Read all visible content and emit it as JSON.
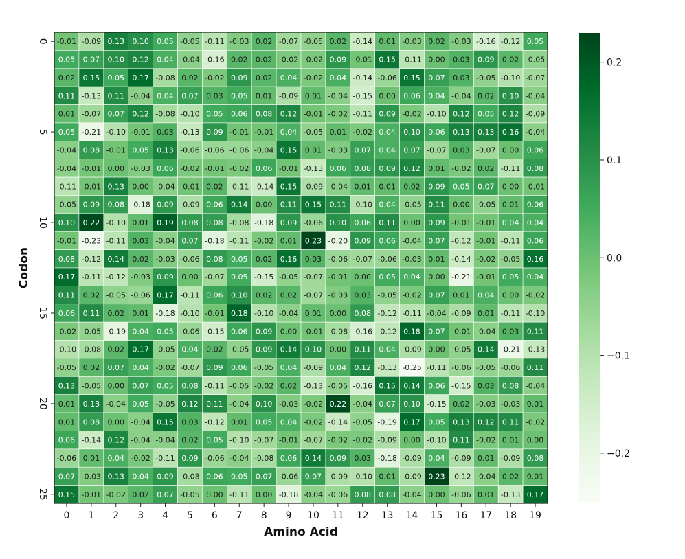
{
  "chart_data": {
    "type": "heatmap",
    "xlabel": "Amino Acid",
    "ylabel": "Codon",
    "x_categories": [
      0,
      1,
      2,
      3,
      4,
      5,
      6,
      7,
      8,
      9,
      10,
      11,
      12,
      13,
      14,
      15,
      16,
      17,
      18,
      19
    ],
    "y_categories": [
      0,
      1,
      2,
      3,
      4,
      5,
      6,
      7,
      8,
      9,
      10,
      11,
      12,
      13,
      14,
      15,
      16,
      17,
      18,
      19,
      20,
      21,
      22,
      23,
      24,
      25
    ],
    "y_tick_labels_shown": [
      0,
      5,
      10,
      15,
      20,
      25
    ],
    "colormap": "Greens",
    "vmin": -0.25,
    "vmax": 0.23,
    "colorbar_ticks": [
      -0.2,
      -0.1,
      0.0,
      0.1,
      0.2
    ],
    "colorbar_tick_labels": [
      "−0.2",
      "−0.1",
      "0.0",
      "0.1",
      "0.2"
    ],
    "values": [
      [
        -0.01,
        -0.09,
        0.13,
        0.1,
        0.05,
        -0.05,
        -0.11,
        -0.03,
        0.02,
        -0.07,
        -0.05,
        0.02,
        -0.14,
        0.01,
        -0.03,
        0.02,
        -0.03,
        -0.16,
        -0.12,
        0.05
      ],
      [
        0.05,
        0.07,
        0.1,
        0.12,
        0.04,
        -0.04,
        -0.16,
        0.02,
        0.02,
        -0.02,
        -0.02,
        0.09,
        -0.01,
        0.15,
        -0.11,
        -0.0,
        0.03,
        0.09,
        0.02,
        -0.05
      ],
      [
        0.02,
        0.15,
        0.05,
        0.17,
        -0.08,
        0.02,
        -0.02,
        0.09,
        0.02,
        0.04,
        -0.02,
        0.04,
        -0.14,
        -0.06,
        0.15,
        0.07,
        0.03,
        -0.05,
        -0.1,
        -0.07
      ],
      [
        0.11,
        -0.13,
        0.11,
        -0.04,
        0.04,
        0.07,
        0.03,
        0.05,
        0.01,
        -0.09,
        0.01,
        -0.04,
        -0.15,
        0.0,
        0.06,
        0.04,
        -0.04,
        0.02,
        0.1,
        -0.04
      ],
      [
        0.01,
        -0.07,
        0.07,
        0.12,
        -0.08,
        -0.1,
        0.05,
        0.06,
        0.08,
        0.12,
        -0.01,
        -0.02,
        -0.11,
        0.09,
        -0.02,
        -0.1,
        0.12,
        0.05,
        0.12,
        -0.09
      ],
      [
        0.05,
        -0.21,
        -0.1,
        -0.01,
        0.03,
        -0.13,
        0.09,
        -0.01,
        -0.01,
        0.04,
        -0.05,
        0.01,
        -0.02,
        0.04,
        0.1,
        0.06,
        0.13,
        0.13,
        0.16,
        -0.04
      ],
      [
        -0.04,
        0.08,
        -0.01,
        0.05,
        0.13,
        -0.06,
        -0.06,
        -0.06,
        -0.04,
        0.15,
        0.01,
        -0.03,
        0.07,
        0.04,
        0.07,
        -0.07,
        0.03,
        -0.07,
        0.0,
        0.06
      ],
      [
        -0.04,
        -0.01,
        -0.0,
        -0.03,
        0.06,
        -0.02,
        -0.01,
        -0.02,
        0.06,
        -0.01,
        -0.13,
        0.06,
        0.08,
        0.09,
        0.12,
        0.01,
        -0.02,
        0.02,
        -0.11,
        0.08
      ],
      [
        -0.11,
        -0.01,
        0.13,
        0.0,
        -0.04,
        -0.01,
        0.02,
        -0.11,
        -0.14,
        0.15,
        -0.09,
        -0.04,
        0.01,
        0.01,
        0.02,
        0.09,
        0.05,
        0.07,
        0.0,
        -0.01
      ],
      [
        -0.05,
        0.09,
        0.08,
        -0.18,
        0.09,
        -0.09,
        0.06,
        0.14,
        -0.0,
        0.11,
        0.15,
        0.11,
        -0.1,
        0.04,
        -0.05,
        0.11,
        0.0,
        -0.05,
        0.01,
        0.06
      ],
      [
        0.1,
        0.22,
        -0.1,
        0.01,
        0.19,
        0.08,
        0.08,
        -0.08,
        -0.18,
        0.09,
        -0.06,
        0.1,
        0.06,
        0.11,
        0.0,
        0.09,
        -0.01,
        -0.01,
        0.04,
        0.04
      ],
      [
        -0.01,
        -0.23,
        -0.11,
        0.03,
        -0.04,
        0.07,
        -0.18,
        -0.11,
        -0.02,
        0.01,
        0.23,
        -0.2,
        0.09,
        0.06,
        -0.04,
        0.07,
        -0.12,
        -0.01,
        -0.11,
        0.06
      ],
      [
        0.08,
        -0.12,
        0.14,
        0.02,
        -0.03,
        -0.06,
        0.08,
        0.05,
        0.02,
        0.16,
        0.03,
        -0.06,
        -0.07,
        -0.06,
        -0.03,
        0.01,
        -0.14,
        -0.02,
        -0.05,
        0.16
      ],
      [
        0.17,
        -0.11,
        -0.12,
        -0.03,
        0.09,
        0.0,
        -0.07,
        0.05,
        -0.15,
        -0.05,
        -0.07,
        -0.01,
        0.0,
        0.05,
        0.04,
        0.0,
        -0.21,
        -0.01,
        0.05,
        0.04
      ],
      [
        0.11,
        0.02,
        -0.05,
        -0.06,
        0.17,
        -0.11,
        0.06,
        0.1,
        0.02,
        0.02,
        -0.07,
        -0.03,
        0.03,
        -0.05,
        -0.02,
        0.07,
        0.01,
        0.04,
        0.0,
        -0.02
      ],
      [
        0.06,
        0.11,
        0.02,
        0.01,
        -0.18,
        -0.1,
        -0.01,
        0.18,
        -0.1,
        -0.04,
        0.01,
        0.0,
        0.08,
        -0.12,
        -0.11,
        -0.04,
        -0.09,
        0.01,
        -0.11,
        -0.1
      ],
      [
        -0.02,
        -0.05,
        -0.19,
        0.04,
        0.05,
        -0.06,
        -0.15,
        0.06,
        0.09,
        -0.0,
        -0.01,
        -0.08,
        -0.16,
        -0.12,
        0.18,
        0.07,
        -0.01,
        -0.04,
        0.03,
        0.11
      ],
      [
        -0.1,
        -0.08,
        0.02,
        0.17,
        -0.05,
        0.04,
        0.02,
        -0.05,
        0.09,
        0.14,
        0.1,
        -0.0,
        0.11,
        0.04,
        -0.09,
        -0.0,
        -0.05,
        0.14,
        -0.21,
        -0.13
      ],
      [
        -0.05,
        0.02,
        0.07,
        0.04,
        -0.02,
        -0.07,
        0.09,
        0.06,
        -0.05,
        0.04,
        -0.09,
        0.04,
        0.12,
        -0.13,
        -0.25,
        -0.11,
        -0.06,
        -0.05,
        -0.06,
        0.11
      ],
      [
        0.13,
        -0.05,
        0.0,
        0.07,
        0.05,
        0.08,
        -0.11,
        -0.05,
        -0.02,
        0.02,
        -0.13,
        -0.05,
        -0.16,
        0.15,
        0.14,
        0.06,
        -0.15,
        0.03,
        0.08,
        -0.04
      ],
      [
        0.01,
        0.13,
        -0.04,
        0.05,
        -0.05,
        0.12,
        0.11,
        -0.04,
        0.1,
        -0.03,
        -0.02,
        0.22,
        -0.04,
        0.07,
        0.1,
        -0.15,
        0.02,
        -0.03,
        -0.03,
        0.01
      ],
      [
        0.01,
        0.08,
        0.0,
        -0.04,
        0.15,
        0.03,
        -0.12,
        0.01,
        0.05,
        0.04,
        -0.02,
        -0.14,
        -0.05,
        -0.19,
        0.17,
        0.05,
        0.13,
        0.12,
        0.11,
        -0.02
      ],
      [
        0.06,
        -0.14,
        0.12,
        -0.04,
        -0.04,
        0.02,
        0.05,
        -0.1,
        -0.07,
        -0.01,
        -0.07,
        -0.02,
        -0.02,
        -0.09,
        0.0,
        -0.1,
        0.11,
        -0.02,
        0.01,
        -0.0
      ],
      [
        -0.06,
        0.01,
        0.04,
        -0.02,
        -0.11,
        0.09,
        -0.06,
        -0.04,
        -0.08,
        0.06,
        0.14,
        0.09,
        0.03,
        -0.18,
        -0.09,
        0.04,
        -0.09,
        0.01,
        -0.09,
        0.08
      ],
      [
        0.07,
        -0.03,
        0.13,
        0.04,
        0.09,
        -0.08,
        0.06,
        0.05,
        0.07,
        -0.06,
        0.07,
        -0.09,
        -0.1,
        0.01,
        -0.09,
        0.23,
        -0.12,
        -0.04,
        0.02,
        0.01
      ],
      [
        0.15,
        -0.01,
        -0.02,
        0.02,
        0.07,
        -0.05,
        -0.0,
        -0.11,
        -0.0,
        -0.18,
        -0.04,
        -0.06,
        0.08,
        0.08,
        -0.04,
        0.0,
        -0.06,
        0.01,
        -0.13,
        0.17
      ]
    ]
  }
}
